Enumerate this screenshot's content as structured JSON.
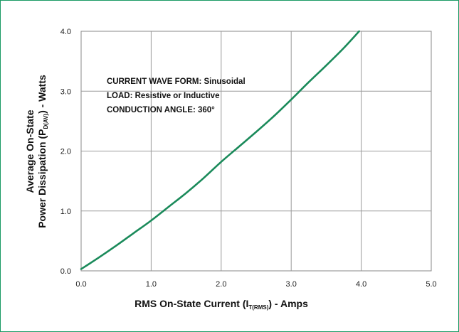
{
  "chart_data": {
    "type": "line",
    "xlabel": {
      "main": "RMS On-State Current (I",
      "sub": "T(RMS)",
      "end": ") - Amps"
    },
    "ylabel": {
      "line1": "Average On-State",
      "line2_main": "Power Dissipation (P",
      "line2_sub": "D(AV)",
      "line2_end": ") - Watts"
    },
    "xlim": [
      0,
      5
    ],
    "ylim": [
      0,
      4
    ],
    "x_ticks": [
      "0.0",
      "1.0",
      "2.0",
      "3.0",
      "4.0",
      "5.0"
    ],
    "y_ticks": [
      "0.0",
      "1.0",
      "2.0",
      "3.0",
      "4.0"
    ],
    "grid": true,
    "annotations": [
      "CURRENT WAVE FORM: Sinusoidal",
      "LOAD: Resistive or Inductive",
      "CONDUCTION ANGLE: 360°"
    ],
    "series": [
      {
        "color": "#1a8a5a",
        "x": [
          0.0,
          0.25,
          0.5,
          0.75,
          1.0,
          1.25,
          1.5,
          1.75,
          2.0,
          2.25,
          2.5,
          2.75,
          3.0,
          3.25,
          3.5,
          3.75,
          3.97
        ],
        "y": [
          0.03,
          0.22,
          0.42,
          0.63,
          0.84,
          1.07,
          1.3,
          1.55,
          1.82,
          2.07,
          2.32,
          2.58,
          2.86,
          3.15,
          3.43,
          3.72,
          4.0
        ]
      }
    ]
  }
}
